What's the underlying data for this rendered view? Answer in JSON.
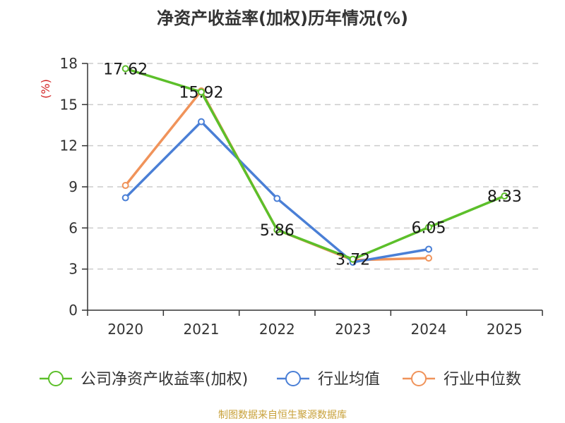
{
  "chart_data": {
    "type": "line",
    "title": "净资产收益率(加权)历年情况(%)",
    "ylabel": "(%)",
    "xlabel": "",
    "categories": [
      "2020",
      "2021",
      "2022",
      "2023",
      "2024",
      "2025"
    ],
    "ylim": [
      0,
      18
    ],
    "yticks": [
      0,
      3,
      6,
      9,
      12,
      15,
      18
    ],
    "grid": "horizontal-dashed",
    "legend_position": "bottom",
    "series": [
      {
        "name": "公司净资产收益率(加权)",
        "color": "#5cbf2a",
        "values": [
          17.62,
          15.92,
          5.86,
          3.72,
          6.05,
          8.33
        ],
        "labels": [
          "17.62",
          "15.92",
          "5.86",
          "3.72",
          "6.05",
          "8.33"
        ]
      },
      {
        "name": "行业均值",
        "color": "#4a7fd6",
        "values": [
          8.2,
          13.75,
          8.15,
          3.5,
          4.45,
          null
        ]
      },
      {
        "name": "行业中位数",
        "color": "#f0935a",
        "values": [
          9.1,
          16.0,
          5.86,
          3.65,
          3.8,
          null
        ]
      }
    ]
  },
  "source_note": "制图数据来自恒生聚源数据库"
}
